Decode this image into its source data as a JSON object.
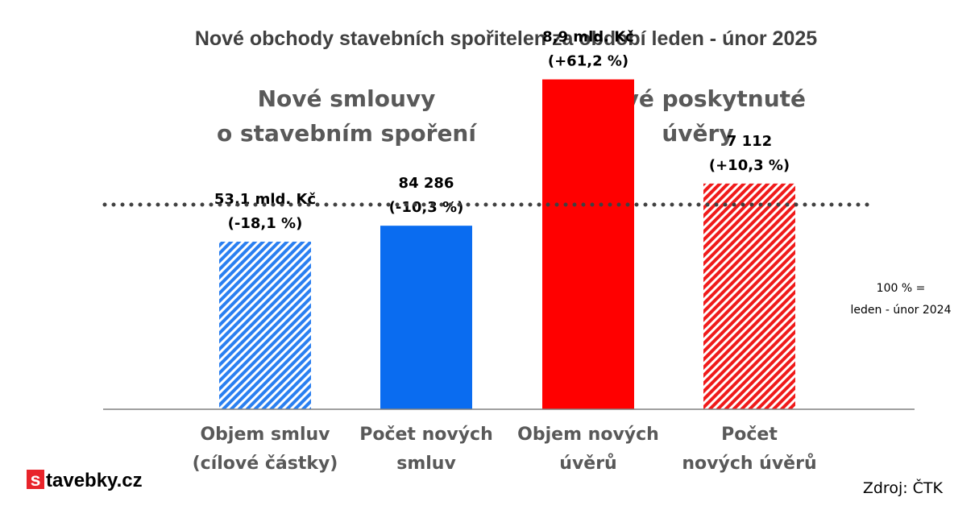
{
  "chart_data": {
    "type": "bar",
    "title": "Nové obchody stavebních spořitelen za období leden - únor 2025",
    "groups": [
      {
        "title_lines": [
          "Nové smlouvy",
          "o stavebním spoření"
        ]
      },
      {
        "title_lines": [
          "Nové poskytnuté",
          "úvěry"
        ]
      }
    ],
    "reference": {
      "value": 100,
      "label_lines": [
        "100 % =",
        "leden - únor 2024"
      ]
    },
    "categories": [
      [
        "Objem smluv",
        "(cílové částky)"
      ],
      [
        "Počet  nových",
        "smluv"
      ],
      [
        "Objem nových",
        "úvěrů"
      ],
      [
        "Počet",
        "nových úvěrů"
      ]
    ],
    "values": [
      81.9,
      89.7,
      161.2,
      110.3
    ],
    "unit": "% of leden - únor 2024",
    "ylim": [
      0,
      200
    ],
    "data_labels": [
      [
        "53,1 mld. Kč",
        "(-18,1 %)"
      ],
      [
        "84 286",
        "(-10,3 %)"
      ],
      [
        "8,9 mld. Kč",
        "(+61,2 %)"
      ],
      [
        "7 112",
        "(+10,3 %)"
      ]
    ],
    "bar_styles": [
      {
        "color": "#2a7ff0",
        "pattern": "hatch"
      },
      {
        "color": "#0a6cf0",
        "pattern": "solid"
      },
      {
        "color": "#ff0000",
        "pattern": "solid"
      },
      {
        "color": "#f01a1a",
        "pattern": "hatch"
      }
    ],
    "grid": false
  },
  "logo": {
    "letter": "s",
    "text": "tavebky.cz",
    "color": "#e8242a"
  },
  "source": "Zdroj: ČTK"
}
